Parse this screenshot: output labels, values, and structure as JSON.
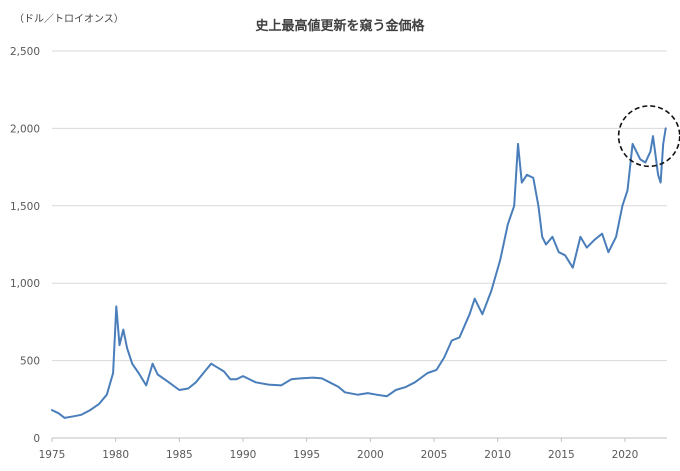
{
  "chart_data": {
    "type": "line",
    "title": "史上最高値更新を窺う金価格",
    "unit_label": "（ドル／トロイオンス）",
    "xlabel": "",
    "ylabel": "",
    "ylim": [
      0,
      2500
    ],
    "xlim": [
      1975,
      2023.3
    ],
    "y_ticks": [
      0,
      500,
      1000,
      1500,
      2000,
      2500
    ],
    "y_tick_labels": [
      "0",
      "500",
      "1,000",
      "1,500",
      "2,000",
      "2,500"
    ],
    "x_ticks": [
      1975,
      1980,
      1985,
      1990,
      1995,
      2000,
      2005,
      2010,
      2015,
      2020
    ],
    "x_tick_labels": [
      "1975",
      "1980",
      "1985",
      "1990",
      "1995",
      "2000",
      "2005",
      "2010",
      "2015",
      "2020"
    ],
    "grid": "horizontal",
    "legend": "none",
    "series": [
      {
        "color": "#4a7ebb",
        "x": [
          1975.0,
          1975.5,
          1976.0,
          1976.7,
          1977.3,
          1978.0,
          1978.7,
          1979.3,
          1979.8,
          1980.05,
          1980.3,
          1980.6,
          1980.9,
          1981.3,
          1981.8,
          1982.4,
          1982.9,
          1983.3,
          1984.0,
          1985.0,
          1985.7,
          1986.3,
          1987.0,
          1987.5,
          1987.9,
          1988.5,
          1989.0,
          1989.5,
          1990.0,
          1991.0,
          1992.0,
          1993.0,
          1993.8,
          1994.5,
          1995.5,
          1996.2,
          1996.8,
          1997.5,
          1998.0,
          1999.0,
          1999.8,
          2000.5,
          2001.3,
          2002.0,
          2002.8,
          2003.5,
          2004.5,
          2005.2,
          2005.8,
          2006.4,
          2007.0,
          2007.8,
          2008.2,
          2008.8,
          2009.5,
          2010.2,
          2010.8,
          2011.3,
          2011.6,
          2011.9,
          2012.3,
          2012.8,
          2013.2,
          2013.5,
          2013.8,
          2014.3,
          2014.8,
          2015.3,
          2015.9,
          2016.5,
          2017.0,
          2017.6,
          2018.2,
          2018.7,
          2019.3,
          2019.8,
          2020.2,
          2020.6,
          2020.9,
          2021.2,
          2021.6,
          2022.0,
          2022.2,
          2022.6,
          2022.8,
          2023.0,
          2023.2
        ],
        "y": [
          180,
          160,
          130,
          140,
          150,
          180,
          220,
          280,
          420,
          850,
          600,
          700,
          580,
          480,
          420,
          340,
          480,
          410,
          370,
          310,
          320,
          360,
          430,
          480,
          460,
          430,
          380,
          380,
          400,
          360,
          345,
          340,
          380,
          385,
          390,
          385,
          360,
          330,
          295,
          280,
          290,
          280,
          270,
          310,
          330,
          360,
          420,
          440,
          520,
          630,
          650,
          800,
          900,
          800,
          950,
          1150,
          1380,
          1500,
          1900,
          1650,
          1700,
          1680,
          1500,
          1300,
          1250,
          1300,
          1200,
          1180,
          1100,
          1300,
          1230,
          1280,
          1320,
          1200,
          1300,
          1500,
          1600,
          1900,
          1850,
          1800,
          1780,
          1850,
          1950,
          1700,
          1650,
          1900,
          2000
        ]
      }
    ],
    "annotations": [
      {
        "type": "ellipse",
        "x": 2021.9,
        "y": 1950,
        "rx_years": 2.4,
        "ry_value": 195,
        "note": ""
      }
    ]
  }
}
